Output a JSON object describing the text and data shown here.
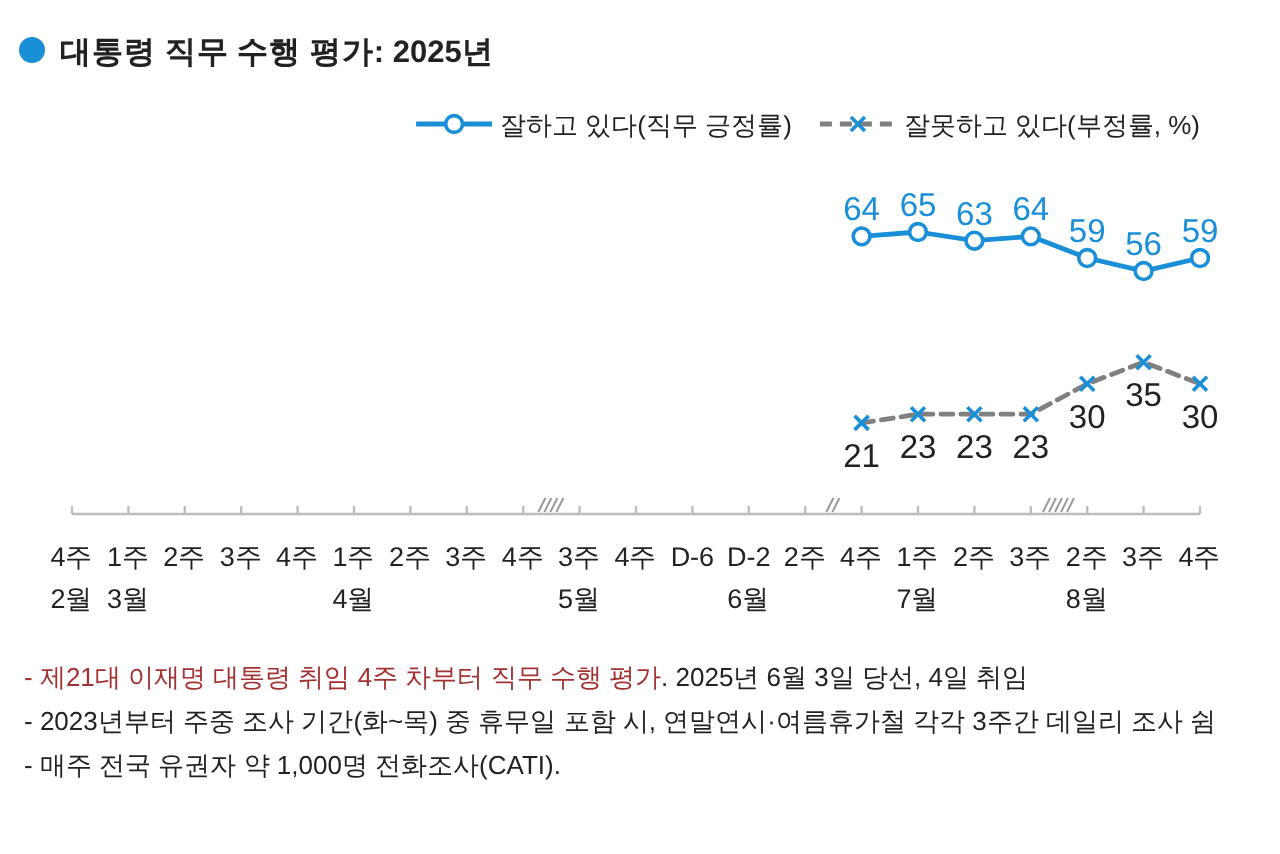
{
  "chart_data": {
    "type": "line",
    "title": "대통령 직무 수행 평가: 2025년",
    "categories": [
      "4주\n2월",
      "1주\n3월",
      "2주",
      "3주",
      "4주",
      "1주\n4월",
      "2주",
      "3주",
      "4주",
      "3주\n5월",
      "4주",
      "D-6",
      "D-2\n6월",
      "2주",
      "4주",
      "1주\n7월",
      "2주",
      "3주",
      "2주\n8월",
      "3주",
      "4주"
    ],
    "series": [
      {
        "name": "잘하고 있다(직무 긍정률)",
        "color": "#1a8fd8",
        "marker": "circle",
        "line_style": "solid",
        "values": [
          null,
          null,
          null,
          null,
          null,
          null,
          null,
          null,
          null,
          null,
          null,
          null,
          null,
          null,
          64,
          65,
          63,
          64,
          59,
          56,
          59
        ]
      },
      {
        "name": "잘못하고 있다(부정률, %)",
        "color": "#808080",
        "colors": [
          null,
          null,
          null,
          null,
          null,
          null,
          null,
          null,
          null,
          null,
          null,
          null,
          null,
          null,
          "#1a8fd8",
          "#1a8fd8",
          "#1a8fd8",
          "#1a8fd8",
          "#1a8fd8",
          "#1a8fd8",
          "#1a8fd8"
        ],
        "marker": "cross",
        "line_style": "dashed",
        "values": [
          null,
          null,
          null,
          null,
          null,
          null,
          null,
          null,
          null,
          null,
          null,
          null,
          null,
          null,
          21,
          23,
          23,
          23,
          30,
          35,
          30
        ]
      }
    ],
    "data_labels": true,
    "legend": "top right",
    "annotations": [
      "- 제21대 이재명 대통령 취임 4주 차부터 직무 수행 평가",
      ". 2025년 6월 3일 당선, 4일 취임",
      "- 2023년부터 주중 조사 기간(화~목) 중 휴무일 포함 시, 연말연시·여름휴가철 각각 3주간 데일리 조사 쉼",
      "- 매주 전국 유권자 약 1,000명 전화조사(CATI)."
    ]
  }
}
